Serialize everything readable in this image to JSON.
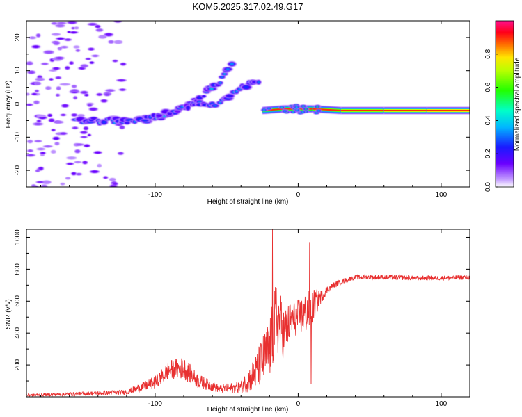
{
  "title": "KOM5.2025.317.02.49.G17",
  "chart_data": [
    {
      "type": "heatmap",
      "title": "KOM5.2025.317.02.49.G17",
      "xlabel": "Height of straight line (km)",
      "ylabel": "Frequency (Hz)",
      "xlim": [
        -190,
        120
      ],
      "ylim": [
        -25,
        25
      ],
      "xticks": [
        -100,
        0,
        100
      ],
      "yticks": [
        -20,
        -10,
        0,
        10,
        20
      ],
      "colorbar": {
        "label": "Normalized spectral amplitude",
        "range": [
          0,
          1
        ],
        "ticks": [
          0.0,
          0.2,
          0.4,
          0.6,
          0.8
        ],
        "tick_labels": [
          "0.0",
          "0.2",
          "0.4",
          "0.6",
          "0.8"
        ],
        "colormap": "rainbow (magenta-blue-cyan-green-yellow-red-pink)"
      },
      "features": [
        {
          "name": "rising trace A",
          "x": [
            -155,
            -130,
            -110,
            -95,
            -80,
            -65,
            -55,
            -50,
            -45
          ],
          "y": [
            -5,
            -5,
            -5,
            -4,
            -1,
            3,
            7,
            10,
            13
          ]
        },
        {
          "name": "secondary trace",
          "x": [
            -110,
            -85,
            -70,
            -55,
            -45,
            -35,
            -25
          ],
          "y": [
            -5,
            -2,
            0,
            0,
            3,
            6,
            6
          ]
        },
        {
          "name": "near-DC line",
          "x": [
            -25,
            -10,
            10,
            30,
            60,
            90,
            120
          ],
          "y": [
            -2,
            -1.5,
            -1.5,
            -2,
            -2,
            -2,
            -2
          ]
        },
        {
          "name": "scattered noise",
          "x_range": [
            -190,
            -130
          ],
          "y_range": [
            -25,
            25
          ]
        }
      ]
    },
    {
      "type": "line",
      "title": "",
      "xlabel": "Height of straight line (km)",
      "ylabel": "SNR (v/v)",
      "xlim": [
        -190,
        120
      ],
      "ylim": [
        0,
        1050
      ],
      "xticks": [
        -100,
        0,
        100
      ],
      "yticks": [
        200,
        400,
        600,
        800,
        1000
      ],
      "series": [
        {
          "name": "SNR",
          "color": "#e83030",
          "x": [
            -190,
            -150,
            -120,
            -100,
            -90,
            -80,
            -70,
            -55,
            -40,
            -30,
            -20,
            -15,
            -10,
            -5,
            0,
            5,
            10,
            15,
            20,
            25,
            30,
            35,
            40,
            60,
            80,
            100,
            120
          ],
          "y": [
            10,
            20,
            30,
            90,
            170,
            180,
            100,
            50,
            60,
            150,
            300,
            500,
            400,
            480,
            500,
            520,
            560,
            620,
            670,
            700,
            720,
            735,
            750,
            750,
            745,
            745,
            750
          ],
          "noise": [
            8,
            12,
            15,
            40,
            60,
            70,
            45,
            25,
            40,
            110,
            200,
            250,
            160,
            120,
            110,
            130,
            120,
            50,
            25,
            20,
            15,
            15,
            15,
            15,
            15,
            15,
            15
          ]
        }
      ],
      "spikes": [
        {
          "x": -18,
          "y": 1050
        },
        {
          "x": 8,
          "y": 970
        },
        {
          "x": 9,
          "y": 80
        }
      ]
    }
  ]
}
